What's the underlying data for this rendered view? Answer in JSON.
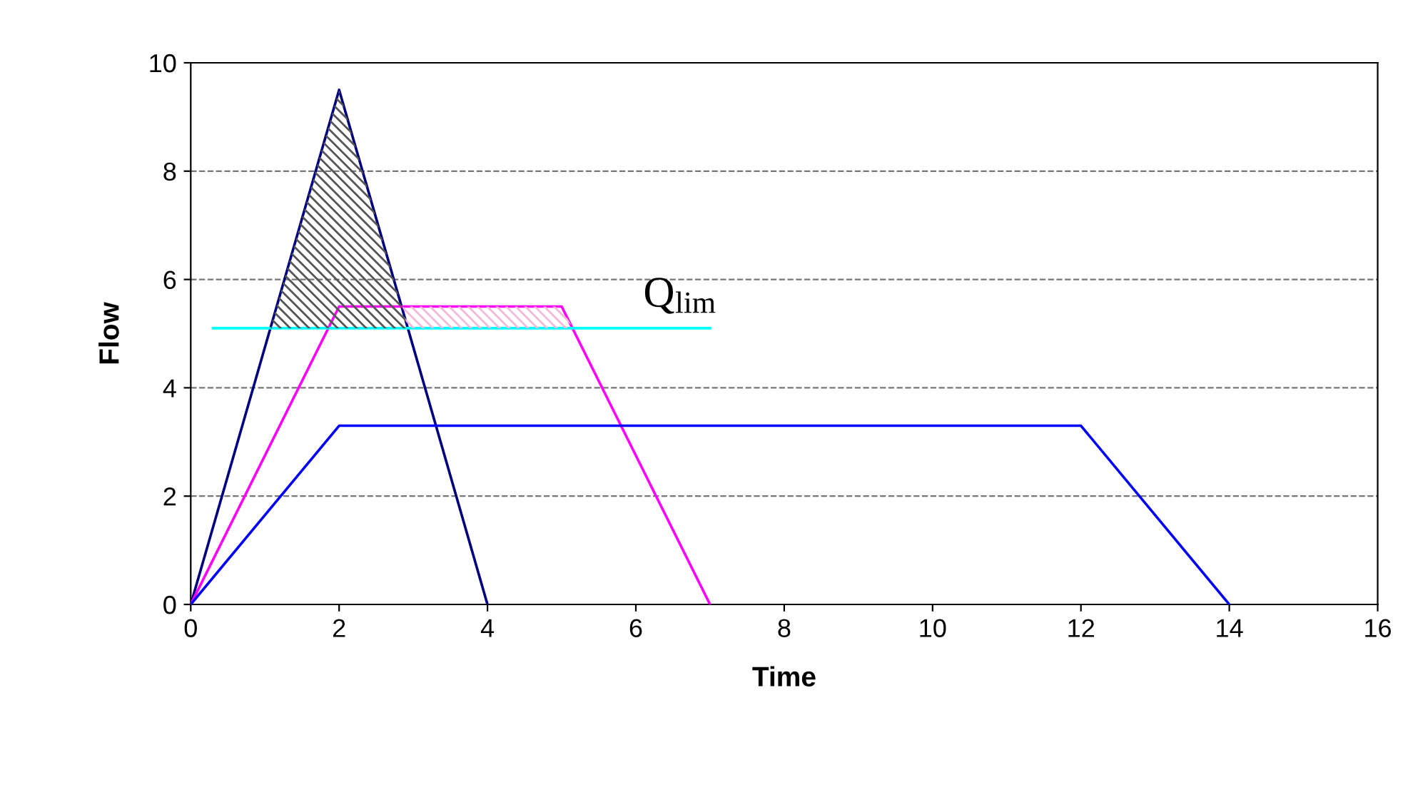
{
  "chart_data": {
    "type": "line",
    "xlabel": "Time",
    "ylabel": "Flow",
    "series": [
      {
        "type": "area",
        "color": "#f4b8d8",
        "x": [
          2.86,
          5,
          5.15
        ],
        "values": [
          5.5,
          5.5,
          5.1
        ]
      },
      {
        "type": "area",
        "color": "#555555",
        "x": [
          1.07,
          2,
          2.93
        ],
        "values": [
          5.1,
          9.5,
          5.1
        ]
      },
      {
        "color": "#000080",
        "x": [
          0,
          2,
          4
        ],
        "values": [
          0,
          9.5,
          0
        ]
      },
      {
        "color": "#ff00ff",
        "x": [
          0,
          2,
          5,
          7
        ],
        "values": [
          0,
          5.5,
          5.5,
          0
        ]
      },
      {
        "color": "#0000ff",
        "x": [
          0,
          2,
          12,
          14
        ],
        "values": [
          0,
          3.3,
          3.3,
          0
        ]
      },
      {
        "color": "#00ffff",
        "x": [
          0.3,
          7
        ],
        "values": [
          5.1,
          5.1
        ]
      }
    ],
    "annotations": [
      {
        "text": "Q$_{lim}$",
        "x": 6.1,
        "y": 5.1
      }
    ],
    "xlim": [
      0,
      16
    ],
    "xticks": [
      0,
      2,
      4,
      6,
      8,
      10,
      12,
      14,
      16
    ],
    "ylim": [
      0,
      10
    ],
    "yticks": [
      0,
      2,
      4,
      6,
      8,
      10
    ],
    "grid": "y",
    "line_style": "solid"
  }
}
